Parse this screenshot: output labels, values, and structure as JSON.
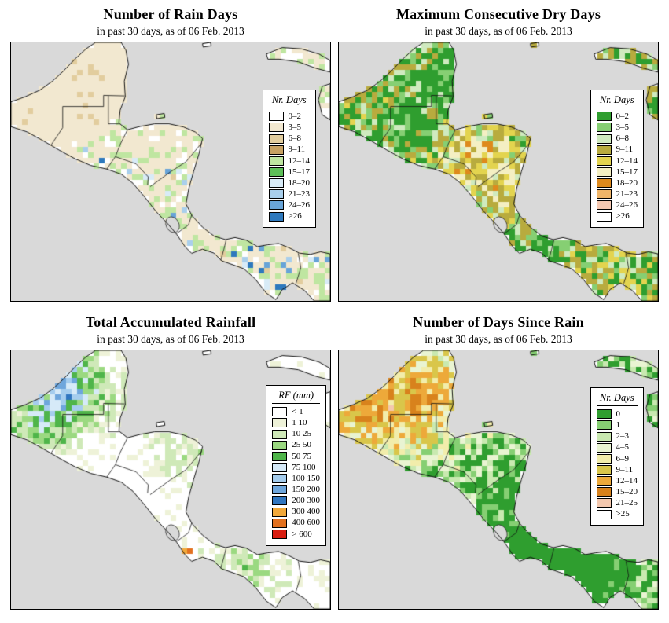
{
  "map": {
    "ocean_color": "#d9d9d9",
    "land_color": "#ffffff",
    "coast_color": "#111111"
  },
  "panels": [
    {
      "id": "rain",
      "title": "Number of Rain Days",
      "subtitle": "in past 30 days, as of  06 Feb. 2013",
      "legend": {
        "title": "Nr. Days",
        "entries": [
          {
            "label": "0–2",
            "color": "#ffffff"
          },
          {
            "label": "3–5",
            "color": "#f2e8d0"
          },
          {
            "label": "6–8",
            "color": "#e2cd9e"
          },
          {
            "label": "9–11",
            "color": "#c7a162"
          },
          {
            "label": "12–14",
            "color": "#bfe6a1"
          },
          {
            "label": "15–17",
            "color": "#5dbf58"
          },
          {
            "label": "18–20",
            "color": "#d8ebf7"
          },
          {
            "label": "21–23",
            "color": "#a9cfec"
          },
          {
            "label": "24–26",
            "color": "#68a4d8"
          },
          {
            "label": ">26",
            "color": "#2e79bd"
          }
        ]
      }
    },
    {
      "id": "dry",
      "title": "Maximum Consecutive Dry Days",
      "subtitle": "in past 30 days, as of  06 Feb. 2013",
      "legend": {
        "title": "Nr. Days",
        "entries": [
          {
            "label": "0–2",
            "color": "#2f9e2f"
          },
          {
            "label": "3–5",
            "color": "#86cf73"
          },
          {
            "label": "6–8",
            "color": "#cfeabf"
          },
          {
            "label": "9–11",
            "color": "#b8ab3e"
          },
          {
            "label": "12–14",
            "color": "#e3d44f"
          },
          {
            "label": "15–17",
            "color": "#f4efc3"
          },
          {
            "label": "18–20",
            "color": "#de8a1d"
          },
          {
            "label": "21–23",
            "color": "#f0b568"
          },
          {
            "label": "24–26",
            "color": "#f6c9b2"
          },
          {
            "label": ">26",
            "color": "#ffffff"
          }
        ]
      }
    },
    {
      "id": "rf",
      "title": "Total Accumulated Rainfall",
      "subtitle": "in past 30 days, as of  06 Feb. 2013",
      "legend": {
        "title": "RF (mm)",
        "entries": [
          {
            "label": "< 1",
            "color": "#ffffff"
          },
          {
            "label": "1   10",
            "color": "#eef2d8"
          },
          {
            "label": "10   25",
            "color": "#cfe9b8"
          },
          {
            "label": "25   50",
            "color": "#9bd981"
          },
          {
            "label": "50   75",
            "color": "#4fb54a"
          },
          {
            "label": "75  100",
            "color": "#d6eaf8"
          },
          {
            "label": "100 150",
            "color": "#a5cdee"
          },
          {
            "label": "150 200",
            "color": "#6ea6dc"
          },
          {
            "label": "200 300",
            "color": "#3076c0"
          },
          {
            "label": "300 400",
            "color": "#f2a93b"
          },
          {
            "label": "400 600",
            "color": "#e2711f"
          },
          {
            "label": "> 600",
            "color": "#d81e11"
          }
        ]
      }
    },
    {
      "id": "since",
      "title": "Number of Days Since Rain",
      "subtitle": "in past 30 days, as of  06 Feb. 2013",
      "legend": {
        "title": "Nr. Days",
        "entries": [
          {
            "label": "0",
            "color": "#2f9e2f"
          },
          {
            "label": "1",
            "color": "#86cf73"
          },
          {
            "label": "2–3",
            "color": "#c9e9b0"
          },
          {
            "label": "4–5",
            "color": "#e9f4d2"
          },
          {
            "label": "6–9",
            "color": "#f2edab"
          },
          {
            "label": "9–11",
            "color": "#d9c64a"
          },
          {
            "label": "12–14",
            "color": "#eda93a"
          },
          {
            "label": "15–20",
            "color": "#d8821c"
          },
          {
            "label": "21–25",
            "color": "#f4c8ae"
          },
          {
            "label": ">25",
            "color": "#ffffff"
          }
        ]
      }
    }
  ]
}
